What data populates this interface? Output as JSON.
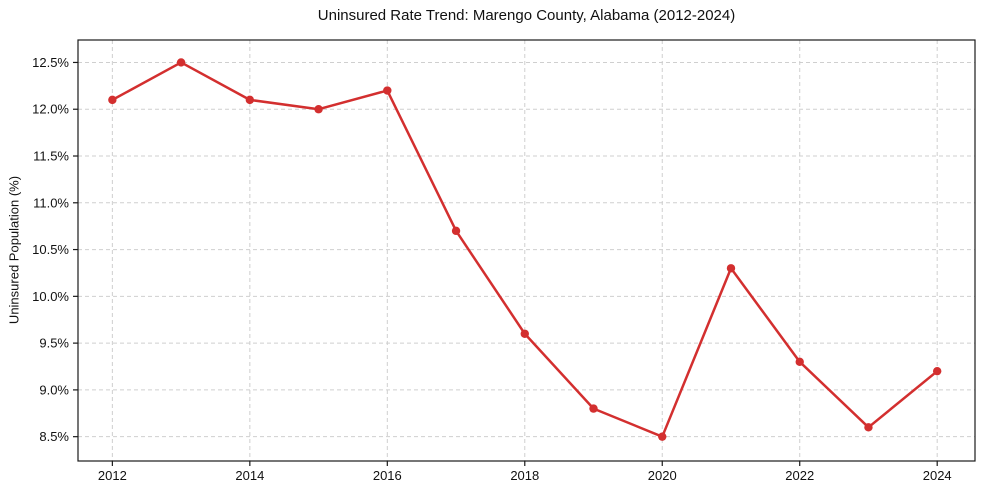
{
  "page": {
    "background": "#ffffff"
  },
  "chart_data": {
    "type": "line",
    "title": "Uninsured Rate Trend: Marengo County, Alabama (2012-2024)",
    "xlabel": "",
    "ylabel": "Uninsured Population (%)",
    "x": [
      2012,
      2013,
      2014,
      2015,
      2016,
      2017,
      2018,
      2019,
      2020,
      2021,
      2022,
      2023,
      2024
    ],
    "values": [
      12.1,
      12.5,
      12.1,
      12.0,
      12.2,
      10.7,
      9.6,
      8.8,
      8.5,
      10.3,
      9.3,
      8.6,
      9.2
    ],
    "x_ticks": [
      2012,
      2014,
      2016,
      2018,
      2020,
      2022,
      2024
    ],
    "x_tick_labels": [
      "2012",
      "2014",
      "2016",
      "2018",
      "2020",
      "2022",
      "2024"
    ],
    "y_ticks": [
      8.5,
      9.0,
      9.5,
      10.0,
      10.5,
      11.0,
      11.5,
      12.0,
      12.5
    ],
    "y_tick_labels": [
      "8.5%",
      "9.0%",
      "9.5%",
      "10.0%",
      "10.5%",
      "11.0%",
      "11.5%",
      "12.0%",
      "12.5%"
    ],
    "xlim": [
      2011.5,
      2024.55
    ],
    "ylim": [
      8.24,
      12.74
    ],
    "grid": true,
    "legend": "none",
    "line_color": "#d32f2f",
    "marker": "circle",
    "grid_color": "#cfcfcf",
    "spine_color": "#1a1a1a",
    "tick_label_color": "#111111"
  }
}
